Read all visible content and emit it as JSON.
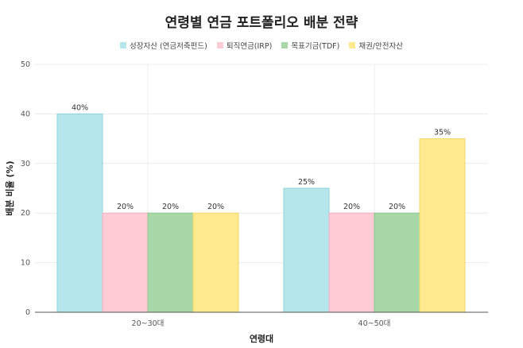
{
  "chart_data": {
    "type": "bar",
    "title": "연령별 연금 포트폴리오 배분 전략",
    "xlabel": "연령대",
    "ylabel": "배분 비율 (%)",
    "categories": [
      "20~30대",
      "40~50대"
    ],
    "series": [
      {
        "name": "성장자산 (연금저축펀드)",
        "values": [
          40,
          25
        ],
        "color": "#b5e6ec",
        "stroke": "#8fd3dc"
      },
      {
        "name": "퇴직연금(IRP)",
        "values": [
          20,
          20
        ],
        "color": "#ffccd5",
        "stroke": "#f4b0bf"
      },
      {
        "name": "목표기금(TDF)",
        "values": [
          20,
          20
        ],
        "color": "#a9d8a8",
        "stroke": "#8cc78b"
      },
      {
        "name": "채권/안전자산",
        "values": [
          20,
          35
        ],
        "color": "#ffea8f",
        "stroke": "#f2d86a"
      }
    ],
    "data_labels": [
      [
        "40%",
        "20%",
        "20%",
        "20%"
      ],
      [
        "25%",
        "20%",
        "20%",
        "35%"
      ]
    ],
    "ylim": [
      0,
      50
    ],
    "yticks": [
      "0",
      "10",
      "20",
      "30",
      "40",
      "50"
    ],
    "grid": true,
    "legend_position": "top"
  }
}
